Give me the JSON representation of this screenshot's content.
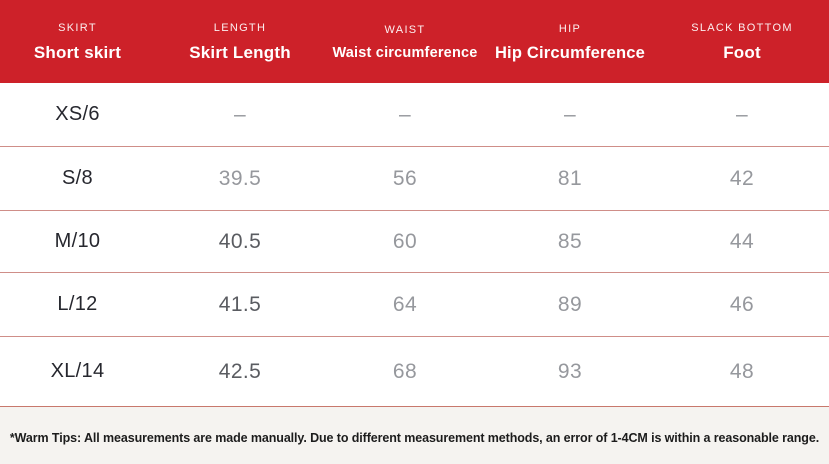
{
  "theme": {
    "header_bg": "#cd2129",
    "header_text": "#ffffff",
    "divider_color": "#cf8e88",
    "size_label_color": "#26272e",
    "value_color": "#96989d",
    "value_dark_color": "#5a5c61",
    "footer_bg": "#f5f3f0",
    "footer_text_color": "#1c1c1c"
  },
  "header": {
    "columns": [
      {
        "eyebrow": "SKIRT",
        "label": "Short skirt"
      },
      {
        "eyebrow": "LENGTH",
        "label": "Skirt Length"
      },
      {
        "eyebrow": "WAIST",
        "label": "Waist circumference"
      },
      {
        "eyebrow": "HIP",
        "label": "Hip Circumference"
      },
      {
        "eyebrow": "SLACK BOTTOM",
        "label": "Foot"
      }
    ]
  },
  "table": {
    "rows": [
      {
        "size": "XS/6",
        "values": [
          "–",
          "–",
          "–",
          "–"
        ]
      },
      {
        "size": "S/8",
        "values": [
          "39.5",
          "56",
          "81",
          "42"
        ]
      },
      {
        "size": "M/10",
        "values": [
          "40.5",
          "60",
          "85",
          "44"
        ]
      },
      {
        "size": "L/12",
        "values": [
          "41.5",
          "64",
          "89",
          "46"
        ]
      },
      {
        "size": "XL/14",
        "values": [
          "42.5",
          "68",
          "93",
          "48"
        ]
      }
    ]
  },
  "footer": {
    "note": "*Warm Tips: All measurements are made manually. Due to different measurement methods, an error of 1-4CM is within a reasonable range."
  },
  "chart_data": {
    "type": "table",
    "columns": [
      "Short skirt",
      "Skirt Length",
      "Waist circumference",
      "Hip Circumference",
      "Foot"
    ],
    "rows": [
      [
        "XS/6",
        "–",
        "–",
        "–",
        "–"
      ],
      [
        "S/8",
        39.5,
        56,
        81,
        42
      ],
      [
        "M/10",
        40.5,
        60,
        85,
        44
      ],
      [
        "L/12",
        41.5,
        64,
        89,
        46
      ],
      [
        "XL/14",
        42.5,
        68,
        93,
        48
      ]
    ],
    "notes": "*Warm Tips: All measurements are made manually. Due to different measurement methods, an error of 1-4CM is within a reasonable range.",
    "units_hint": "CM"
  }
}
